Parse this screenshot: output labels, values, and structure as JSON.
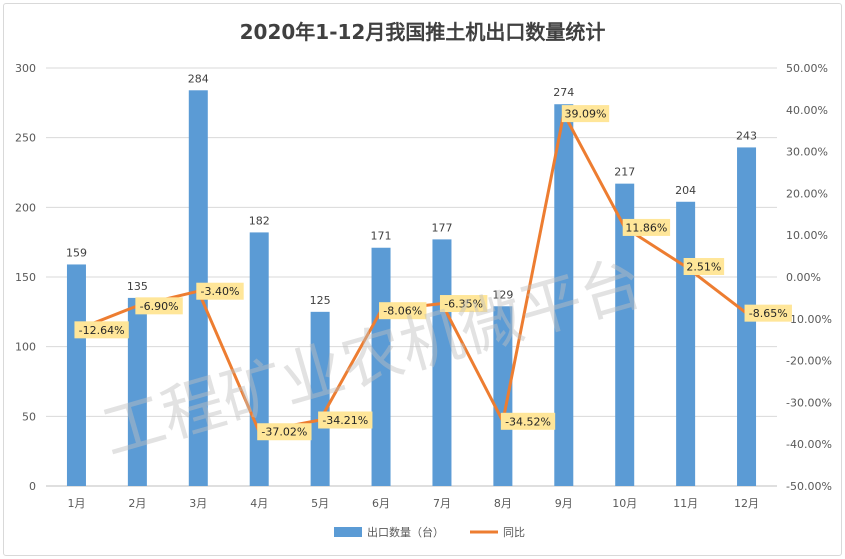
{
  "chart_data": {
    "type": "bar",
    "title": "2020年1-12月我国推土机出口数量统计",
    "categories": [
      "1月",
      "2月",
      "3月",
      "4月",
      "5月",
      "6月",
      "7月",
      "8月",
      "9月",
      "10月",
      "11月",
      "12月"
    ],
    "series": [
      {
        "name": "出口数量（台）",
        "type": "bar",
        "axis": "left",
        "color": "#5b9bd5",
        "values": [
          159,
          135,
          284,
          182,
          125,
          171,
          177,
          129,
          274,
          217,
          204,
          243
        ],
        "labels": [
          "159",
          "135",
          "284",
          "182",
          "125",
          "171",
          "177",
          "129",
          "274",
          "217",
          "204",
          "243"
        ]
      },
      {
        "name": "同比",
        "type": "line",
        "axis": "right",
        "color": "#ed7d31",
        "values": [
          -12.64,
          -6.9,
          -3.4,
          -37.02,
          -34.21,
          -8.06,
          -6.35,
          -34.52,
          39.09,
          11.86,
          2.51,
          -8.65
        ],
        "labels": [
          "-12.64%",
          "-6.90%",
          "-3.40%",
          "-37.02%",
          "-34.21%",
          "-8.06%",
          "-6.35%",
          "-34.52%",
          "39.09%",
          "11.86%",
          "2.51%",
          "-8.65%"
        ]
      }
    ],
    "y_left": {
      "min": 0,
      "max": 300,
      "ticks": [
        "0",
        "50",
        "100",
        "150",
        "200",
        "250",
        "300"
      ]
    },
    "y_right": {
      "min": -50,
      "max": 50,
      "ticks": [
        "-50.00%",
        "-40.00%",
        "-30.00%",
        "-20.00%",
        "-10.00%",
        "0.00%",
        "10.00%",
        "20.00%",
        "30.00%",
        "40.00%",
        "50.00%"
      ]
    },
    "grid": true,
    "legend_position": "bottom",
    "watermark": "工程矿业农机微平台"
  }
}
